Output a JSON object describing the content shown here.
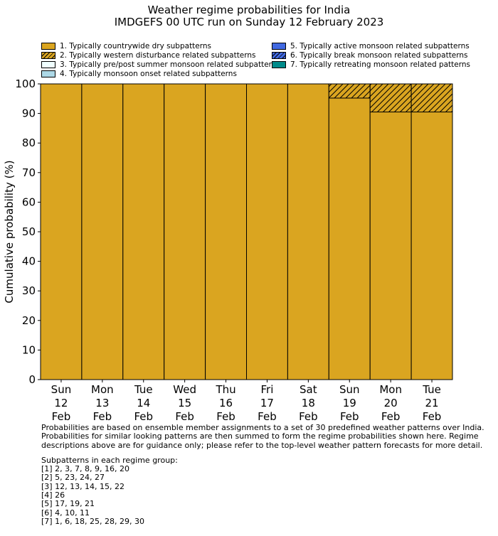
{
  "title_line1": "Weather regime probabilities for India",
  "title_line2": "IMDGEFS 00 UTC run on Sunday 12 February 2023",
  "legend": [
    {
      "label": "1. Typically countrywide dry subpatterns",
      "color": "#DAA520",
      "hatch": false
    },
    {
      "label": "2. Typically western disturbance related subpatterns",
      "color": "#DAA520",
      "hatch": true
    },
    {
      "label": "3. Typically pre/post summer monsoon related subpatterns",
      "color": "#F0FFFF",
      "hatch": false
    },
    {
      "label": "4. Typically monsoon onset related subpatterns",
      "color": "#ADD8E6",
      "hatch": false
    },
    {
      "label": "5. Typically active monsoon related subpatterns",
      "color": "#4169E1",
      "hatch": false
    },
    {
      "label": "6. Typically break monsoon related subpatterns",
      "color": "#4169E1",
      "hatch": true
    },
    {
      "label": "7. Typically retreating monsoon related patterns",
      "color": "#008B8B",
      "hatch": false
    }
  ],
  "chart_data": {
    "type": "bar",
    "stacked": true,
    "ylabel": "Cumulative probability (%)",
    "ylim": [
      0,
      100
    ],
    "yticks": [
      0,
      10,
      20,
      30,
      40,
      50,
      60,
      70,
      80,
      90,
      100
    ],
    "categories": [
      [
        "Sun",
        "12",
        "Feb"
      ],
      [
        "Mon",
        "13",
        "Feb"
      ],
      [
        "Tue",
        "14",
        "Feb"
      ],
      [
        "Wed",
        "15",
        "Feb"
      ],
      [
        "Thu",
        "16",
        "Feb"
      ],
      [
        "Fri",
        "17",
        "Feb"
      ],
      [
        "Sat",
        "18",
        "Feb"
      ],
      [
        "Sun",
        "19",
        "Feb"
      ],
      [
        "Mon",
        "20",
        "Feb"
      ],
      [
        "Tue",
        "21",
        "Feb"
      ]
    ],
    "series": [
      {
        "name": "1. Typically countrywide dry subpatterns",
        "values": [
          100,
          100,
          100,
          100,
          100,
          100,
          100,
          95.2,
          90.5,
          90.5
        ]
      },
      {
        "name": "2. Typically western disturbance related subpatterns",
        "values": [
          0,
          0,
          0,
          0,
          0,
          0,
          0,
          4.8,
          9.5,
          9.5
        ]
      }
    ]
  },
  "notes": {
    "para": "Probabilities are based on ensemble member assignments to a set of 30 predefined weather patterns over India.\nProbabilities for similar looking patterns are then summed to form the regime probabilities shown here. Regime\ndescriptions above are for guidance only; please refer to the top-level weather pattern forecasts for more detail.",
    "groups_heading": "Subpatterns in each regime group:",
    "groups": [
      "[1] 2, 3, 7, 8, 9, 16, 20",
      "[2] 5, 23, 24, 27",
      "[3] 12, 13, 14, 15, 22",
      "[4] 26",
      "[5] 17, 19, 21",
      "[6] 4, 10, 11",
      "[7] 1, 6, 18, 25, 28, 29, 30"
    ]
  }
}
